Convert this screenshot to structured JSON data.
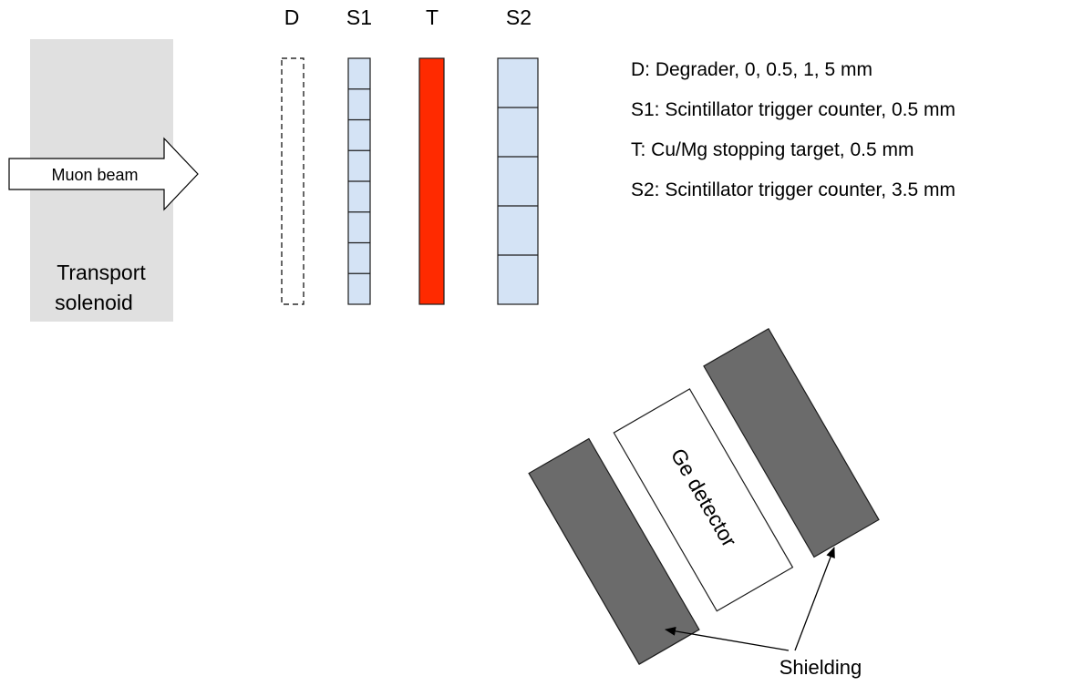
{
  "colors": {
    "solenoid": "#e0e0e0",
    "counter_fill": "#d4e3f5",
    "counter_stroke": "#1c1c1c",
    "target_fill": "#ff2a00",
    "shielding_fill": "#6b6b6b",
    "detector_fill": "#ffffff"
  },
  "solenoid": {
    "label_line1": "Transport",
    "label_line2": "solenoid"
  },
  "beam": {
    "label": "Muon beam"
  },
  "column_labels": {
    "degrader": "D",
    "s1": "S1",
    "target": "T",
    "s2": "S2"
  },
  "counters": {
    "s1_segments": 8,
    "s2_segments": 5
  },
  "legend": [
    "D: Degrader, 0, 0.5, 1, 5 mm",
    "S1: Scintillator trigger counter, 0.5 mm",
    "T: Cu/Mg stopping target, 0.5 mm",
    "S2: Scintillator trigger counter, 3.5 mm"
  ],
  "detector": {
    "label": "Ge detector"
  },
  "shielding": {
    "label": "Shielding"
  }
}
